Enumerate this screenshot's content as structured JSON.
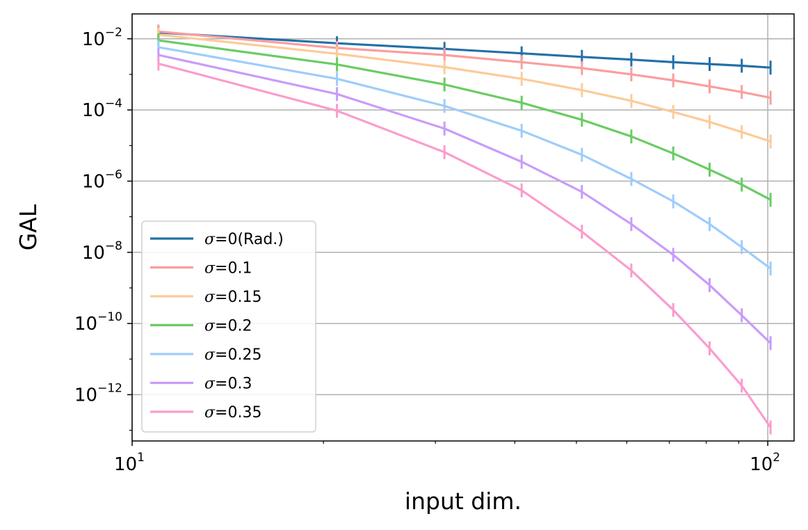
{
  "chart_data": {
    "type": "line",
    "xscale": "log",
    "yscale": "log",
    "title": "",
    "xlabel": "input dim.",
    "ylabel": "GAL",
    "xlim": [
      10,
      110
    ],
    "ylim": [
      5e-14,
      0.05
    ],
    "grid": "x-major, y-major",
    "legend": "bottom-left",
    "x_ticks": [
      {
        "value": 10,
        "base": "10",
        "exp": "1"
      },
      {
        "value": 100,
        "base": "10",
        "exp": "2"
      }
    ],
    "y_ticks": [
      {
        "value": 0.01,
        "base": "10",
        "exp": "−2"
      },
      {
        "value": 0.0001,
        "base": "10",
        "exp": "−4"
      },
      {
        "value": 1e-06,
        "base": "10",
        "exp": "−6"
      },
      {
        "value": 1e-08,
        "base": "10",
        "exp": "−8"
      },
      {
        "value": 1e-10,
        "base": "10",
        "exp": "−10"
      },
      {
        "value": 1e-12,
        "base": "10",
        "exp": "−12"
      }
    ],
    "x": [
      11,
      21,
      31,
      41,
      51,
      61,
      71,
      81,
      91,
      101
    ],
    "series": [
      {
        "name": "σ=0(Rad.)",
        "sigma_symbol": "σ",
        "label_rest": "=0(Rad.)",
        "color": "#2470a8",
        "values": [
          0.015,
          0.0075,
          0.0052,
          0.0039,
          0.0031,
          0.0026,
          0.0022,
          0.00195,
          0.00175,
          0.00155
        ]
      },
      {
        "name": "σ=0.1",
        "sigma_symbol": "σ",
        "label_rest": "=0.1",
        "color": "#fa9e9e",
        "values": [
          0.016,
          0.0055,
          0.0035,
          0.0022,
          0.0015,
          0.001,
          0.00068,
          0.00046,
          0.00032,
          0.00022
        ]
      },
      {
        "name": "σ=0.15",
        "sigma_symbol": "σ",
        "label_rest": "=0.15",
        "color": "#fccb98",
        "values": [
          0.013,
          0.0038,
          0.0016,
          0.00075,
          0.00036,
          0.00018,
          8.8e-05,
          4.6e-05,
          2.4e-05,
          1.3e-05
        ]
      },
      {
        "name": "σ=0.2",
        "sigma_symbol": "σ",
        "label_rest": "=0.2",
        "color": "#6acc64",
        "values": [
          0.009,
          0.0019,
          0.00052,
          0.00016,
          5.3e-05,
          1.8e-05,
          6e-06,
          2.1e-06,
          8e-07,
          3e-07
        ]
      },
      {
        "name": "σ=0.25",
        "sigma_symbol": "σ",
        "label_rest": "=0.25",
        "color": "#9ecdfa",
        "values": [
          0.0058,
          0.00075,
          0.00013,
          2.6e-05,
          5.5e-06,
          1.15e-06,
          2.7e-07,
          6.2e-08,
          1.4e-08,
          3.5e-09
        ]
      },
      {
        "name": "σ=0.3",
        "sigma_symbol": "σ",
        "label_rest": "=0.3",
        "color": "#c99cfa",
        "values": [
          0.0035,
          0.00028,
          3e-05,
          3.5e-06,
          5e-07,
          6.2e-08,
          8.5e-09,
          1.2e-09,
          1.7e-10,
          2.8e-11
        ]
      },
      {
        "name": "σ=0.35",
        "sigma_symbol": "σ",
        "label_rest": "=0.35",
        "color": "#fb9ccd",
        "values": [
          0.002,
          9.5e-05,
          6.5e-06,
          5.5e-07,
          3.8e-08,
          3.1e-09,
          2.4e-10,
          2e-11,
          1.8e-12,
          1.2e-13
        ]
      }
    ]
  }
}
